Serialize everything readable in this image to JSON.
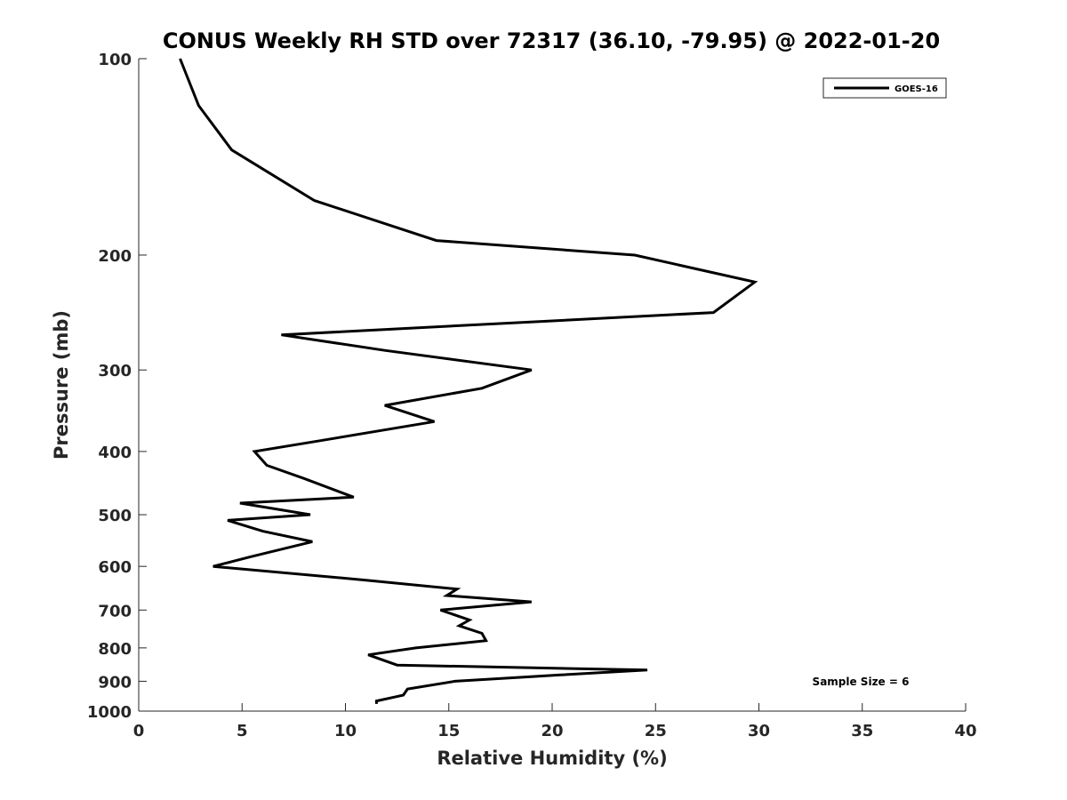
{
  "chart_data": {
    "type": "line",
    "title": "CONUS Weekly RH STD over 72317 (36.10, -79.95) @ 2022-01-20",
    "xlabel": "Relative Humidity (%)",
    "ylabel": "Pressure (mb)",
    "xlim": [
      0,
      40
    ],
    "ylim": [
      1000,
      100
    ],
    "y_scale": "log",
    "x_ticks": [
      0,
      5,
      10,
      15,
      20,
      25,
      30,
      35,
      40
    ],
    "y_ticks": [
      100,
      200,
      300,
      400,
      500,
      600,
      700,
      800,
      900,
      1000
    ],
    "grid": false,
    "legend_position": "top-right",
    "annotation": "Sample Size = 6",
    "series": [
      {
        "name": "GOES-16",
        "color": "#000000",
        "x": [
          2.0,
          2.9,
          4.5,
          8.5,
          14.4,
          24.0,
          29.8,
          27.8,
          6.9,
          11.9,
          19.0,
          16.6,
          11.9,
          14.3,
          8.8,
          5.6,
          6.2,
          8.0,
          10.4,
          4.9,
          8.3,
          4.3,
          6.0,
          8.4,
          5.4,
          3.6,
          11.0,
          15.4,
          14.9,
          19.0,
          14.6,
          16.0,
          15.5,
          16.6,
          16.8,
          13.4,
          11.1,
          12.5,
          24.6,
          20.4,
          15.3,
          13.0,
          12.8,
          12.5,
          11.5,
          11.5
        ],
        "y": [
          100,
          118,
          138,
          165,
          190,
          200,
          220,
          245,
          265,
          280,
          300,
          320,
          340,
          360,
          385,
          400,
          420,
          440,
          470,
          480,
          500,
          510,
          530,
          550,
          580,
          600,
          630,
          650,
          665,
          680,
          700,
          725,
          740,
          760,
          780,
          800,
          820,
          850,
          865,
          880,
          900,
          925,
          945,
          950,
          965,
          975
        ]
      }
    ]
  }
}
